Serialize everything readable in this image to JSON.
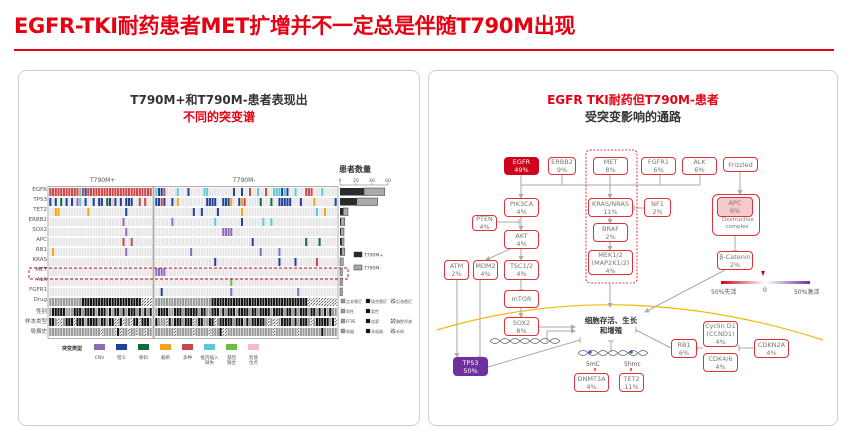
{
  "title": "EGFR-TKI耐药患者MET扩增并不一定总是伴随T790M出现",
  "left_panel": {
    "heading1": "T790M+和T790M-患者表现出",
    "heading2": "不同的突变谱",
    "group_plus": "T790M+",
    "group_minus": "T790M-",
    "bar_title": "患者数量",
    "bar_ticks": [
      "0",
      "20",
      "40",
      "60"
    ],
    "genes": [
      "EGFR",
      "TP53",
      "TET2",
      "ERBB2",
      "SOX2",
      "APC",
      "RB1",
      "KRAS",
      "MET",
      "ALK",
      "FGFR1"
    ],
    "clinical_rows": [
      "Drug",
      "性别",
      "样本类型",
      "吸烟史"
    ],
    "alterations_plus": {
      "EGFR": "xxxxxxxxxxxixmxxxxxxxxxxxxxxxxxxxxxxxxxx",
      "TP53": "m.m.f.m.m.ci.m..m.mm.fmsm.m.mmm..x.x...",
      "TET2": "..tt..........t.............m.........",
      "ERBB2": "...........................c..........",
      "SOX2": "............................c.........",
      "APC": "...........................x..x.......",
      "RB1": ".t..........................c.........",
      "KRAS": "......................................",
      "MET": "......................................",
      "ALK": "......................................",
      "FGFR1": "......................................"
    },
    "alterations_minus": {
      "EGFR": "immx....i...m.....ii.........m..m..x..i..x..iiimim..i...xxx...i.....mm",
      "TP53": "mmxm..m.t..........mmmm..mmmt..mtx.....f...f..mmmmm...m....t.......m.",
      "TET2": "..............m..m.....m........t...........................i..t......",
      "ERBB2": "......c...............i.........m.......i..i.........................",
      "SOX2": ".........................cccc.......................................",
      "APC": "....................................m...................f....f........",
      "RB1": ".............c.........................c......c.......................",
      "KRAS": "......................m.......................m.....m.......x.........",
      "MET": "cccc................................................................",
      "ALK": "............................u.........................................u..u",
      "FGFR1": "..m.........................c........................c............."
    },
    "clinical_plus": {
      "Drug": "ggggggggggggkkkkkkkkkkkkkkkkkkkkkkzzzzzz",
      "性别": "gkkkkkgggkkkgkkkkgkkkgkgkkgkgkkkgkgkgkgg",
      "样本类型": "kkgzzgkkkzkkkgkkkkgkkgkkzzkzggzkkzkkkg",
      "吸烟史": "gggggggggggggggggggzggggzkzggzggzggzggg"
    },
    "clinical_minus": {
      "Drug": "gggggggggggggggggggggkkkkkkkkkkkkkkkkkkkkkkkkkkkkkkkkkkkkzzzzzzzzzzz",
      "性别": "gkkkkggkkkgkkkkkgkkggkkkgkgkkkgkkkkgkkgkkkkgkkkkgkkgkgkkkgkkgkgkgkgg",
      "样本类型": "kgggzkgkkkgkkkzgkkggkkzgkkkkkgkkkgkgkkkkkgzgzzgkkkkgkgkkkgzgkkkkkgkz",
      "吸烟史": "gggggggzggggggzgggggzgggkzzgggggggggggggggggzggggggggzggggggggkgggg"
    },
    "bar_counts": {
      "plus": [
        30,
        21,
        4,
        1,
        1,
        2,
        2,
        0,
        0,
        0,
        0
      ],
      "minus": [
        26,
        26,
        6,
        5,
        4,
        3,
        4,
        4,
        3,
        3,
        3
      ]
    },
    "bar_legend": [
      "T790M+",
      "T790M-"
    ],
    "clinical_legend": [
      [
        "吉非替尼",
        "埃克替尼",
        "厄洛替尼"
      ],
      [
        "男性",
        "女性"
      ],
      [
        "FFPE",
        "血浆",
        "胸腔积液"
      ],
      [
        "吸烟",
        "非吸烟",
        "未知"
      ]
    ],
    "mutation_legend_title": "突变类型",
    "mutation_types": [
      {
        "code": "c",
        "label": "CNV",
        "color": "#8e6bb3"
      },
      {
        "code": "m",
        "label": "错义",
        "color": "#22419a"
      },
      {
        "code": "f",
        "label": "移码",
        "color": "#166a35"
      },
      {
        "code": "t",
        "label": "截断",
        "color": "#f5a21b"
      },
      {
        "code": "x",
        "label": "多种",
        "color": "#c9484a"
      },
      {
        "code": "i",
        "label": "框内插入缺失",
        "color": "#5bc8d8"
      },
      {
        "code": "u",
        "label": "基因融合",
        "color": "#6cbd45"
      },
      {
        "code": "s",
        "label": "剪接位点",
        "color": "#f7b9c9"
      }
    ]
  },
  "right_panel": {
    "heading1": "EGFR TKI耐药但T790M-患者",
    "heading2": "受突变影响的通路",
    "nodes": {
      "egfr": [
        "EGFR",
        "49%"
      ],
      "erbb2": [
        "ERBB2",
        "9%"
      ],
      "met": [
        "MET",
        "8%"
      ],
      "fgfr1": [
        "FGFR1",
        "6%"
      ],
      "alk": [
        "ALK",
        "6%"
      ],
      "frizzled": [
        "Frizzled"
      ],
      "pik3ca": [
        "PIK3CA",
        "4%"
      ],
      "pten": [
        "PTEN",
        "4%"
      ],
      "akt": [
        "AKT",
        "4%"
      ],
      "atm": [
        "ATM",
        "2%"
      ],
      "mdm2": [
        "MDM2",
        "4%"
      ],
      "tsc": [
        "TSC1/2",
        "4%"
      ],
      "mtor": [
        "mTOR"
      ],
      "sox2": [
        "SOX2",
        "8%"
      ],
      "kras": [
        "KRAS/NRAS",
        "11%"
      ],
      "nf1": [
        "NF1",
        "2%"
      ],
      "braf": [
        "BRAF",
        "2%"
      ],
      "mek": [
        "MEK1/2",
        "(MAP2K1/2)",
        "4%"
      ],
      "apc": [
        "APC",
        "6%"
      ],
      "catenin": [
        "β-Catenin",
        "2%"
      ],
      "tp53": [
        "TP53",
        "50%"
      ],
      "dnmt3a": [
        "DNMT3A",
        "4%"
      ],
      "tet2": [
        "TET2",
        "11%"
      ],
      "rb1": [
        "RB1",
        "6%"
      ],
      "ccnd1": [
        "Cyclin D1",
        "(CCND1)",
        "4%"
      ],
      "cdk46": [
        "CDK4/6",
        "4%"
      ],
      "cdkn2a": [
        "CDKN2A",
        "4%"
      ]
    },
    "destructive_complex": "Destructive complex",
    "center_line1": "细胞存活、生长",
    "center_line2": "和增殖",
    "mark_5mc": "5mC",
    "mark_5hmc": "5hmc",
    "scale": {
      "left": "50%失活",
      "mid": "0",
      "right": "50%激活",
      "colors": [
        "#d0021b",
        "#ffffff",
        "#7030a0"
      ]
    },
    "colors": {
      "egfr_fill": "#d0021b",
      "tp53_fill": "#7030a0",
      "apc_fill": "#f6c9cc",
      "border": "#e0303a",
      "arc": "#f5b800"
    }
  }
}
